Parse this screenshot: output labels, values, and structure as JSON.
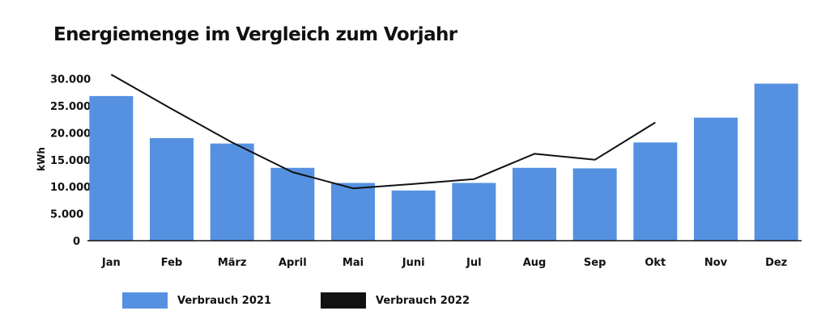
{
  "chart_data": {
    "type": "bar",
    "title": "Energiemenge im Vergleich zum Vorjahr",
    "xlabel": "",
    "ylabel": "kWh",
    "ylim": [
      0,
      30000
    ],
    "yticks": [
      0,
      5000,
      10000,
      15000,
      20000,
      25000,
      30000
    ],
    "ytick_labels": [
      "0",
      "5.000",
      "10.000",
      "15.000",
      "20.000",
      "25.000",
      "30.000"
    ],
    "grid": false,
    "legend_position": "bottom-left",
    "categories": [
      "Jan",
      "Feb",
      "März",
      "April",
      "Mai",
      "Juni",
      "Jul",
      "Aug",
      "Sep",
      "Okt",
      "Nov",
      "Dez"
    ],
    "series": [
      {
        "name": "Verbrauch 2021",
        "type": "bar",
        "color": "#5591e0",
        "values": [
          26800,
          19000,
          18000,
          13500,
          10700,
          9300,
          10700,
          13500,
          13400,
          18200,
          22800,
          29100
        ]
      },
      {
        "name": "Verbrauch 2022",
        "type": "line",
        "color": "#111111",
        "values": [
          30800,
          24400,
          18200,
          12700,
          9700,
          10500,
          11400,
          16100,
          15000,
          21900,
          null,
          null
        ]
      }
    ]
  }
}
